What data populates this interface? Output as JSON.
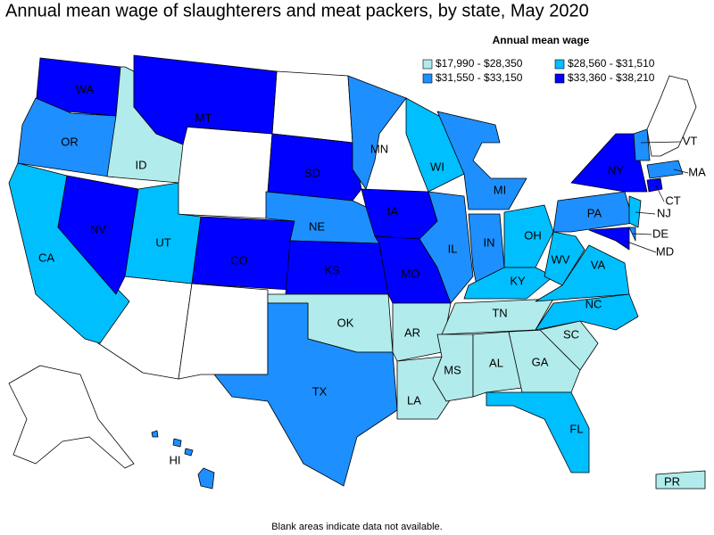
{
  "title": "Annual mean wage of slaughterers and meat packers, by state, May 2020",
  "legend": {
    "title": "Annual mean wage",
    "items": [
      {
        "label": "$17,990 - $28,350",
        "color": "#b2ebeb"
      },
      {
        "label": "$28,560 - $31,510",
        "color": "#00bfff"
      },
      {
        "label": "$31,550 - $33,150",
        "color": "#1e8fff"
      },
      {
        "label": "$33,360 - $38,210",
        "color": "#0000ff"
      }
    ]
  },
  "states": [
    {
      "label": "WA",
      "color": "#0000ff"
    },
    {
      "label": "OR",
      "color": "#1e8fff"
    },
    {
      "label": "CA",
      "color": "#00bfff"
    },
    {
      "label": "NV",
      "color": "#0000ff"
    },
    {
      "label": "ID",
      "color": "#b2ebeb"
    },
    {
      "label": "MT",
      "color": "#0000ff"
    },
    {
      "label": "UT",
      "color": "#00bfff"
    },
    {
      "label": "CO",
      "color": "#0000ff"
    },
    {
      "label": "SD",
      "color": "#0000ff"
    },
    {
      "label": "NE",
      "color": "#1e8fff"
    },
    {
      "label": "KS",
      "color": "#0000ff"
    },
    {
      "label": "OK",
      "color": "#b2ebeb"
    },
    {
      "label": "TX",
      "color": "#1e8fff"
    },
    {
      "label": "MN",
      "color": "#1e8fff"
    },
    {
      "label": "IA",
      "color": "#0000ff"
    },
    {
      "label": "MO",
      "color": "#0000ff"
    },
    {
      "label": "AR",
      "color": "#b2ebeb"
    },
    {
      "label": "LA",
      "color": "#b2ebeb"
    },
    {
      "label": "WI",
      "color": "#00bfff"
    },
    {
      "label": "IL",
      "color": "#1e8fff"
    },
    {
      "label": "MI",
      "color": "#1e8fff"
    },
    {
      "label": "IN",
      "color": "#1e8fff"
    },
    {
      "label": "OH",
      "color": "#00bfff"
    },
    {
      "label": "KY",
      "color": "#00bfff"
    },
    {
      "label": "TN",
      "color": "#b2ebeb"
    },
    {
      "label": "MS",
      "color": "#b2ebeb"
    },
    {
      "label": "AL",
      "color": "#b2ebeb"
    },
    {
      "label": "GA",
      "color": "#b2ebeb"
    },
    {
      "label": "FL",
      "color": "#00bfff"
    },
    {
      "label": "SC",
      "color": "#b2ebeb"
    },
    {
      "label": "NC",
      "color": "#00bfff"
    },
    {
      "label": "VA",
      "color": "#00bfff"
    },
    {
      "label": "WV",
      "color": "#00bfff"
    },
    {
      "label": "PA",
      "color": "#1e8fff"
    },
    {
      "label": "NY",
      "color": "#0000ff"
    },
    {
      "label": "VT",
      "color": "#1e8fff"
    },
    {
      "label": "MA",
      "color": "#1e8fff"
    },
    {
      "label": "CT",
      "color": "#0000ff"
    },
    {
      "label": "NJ",
      "color": "#00bfff"
    },
    {
      "label": "DE",
      "color": "#1e8fff"
    },
    {
      "label": "MD",
      "color": "#0000ff"
    },
    {
      "label": "HI",
      "color": "#1e8fff"
    },
    {
      "label": "PR",
      "color": "#b2ebeb"
    }
  ],
  "footnote": "Blank areas indicate data not available."
}
